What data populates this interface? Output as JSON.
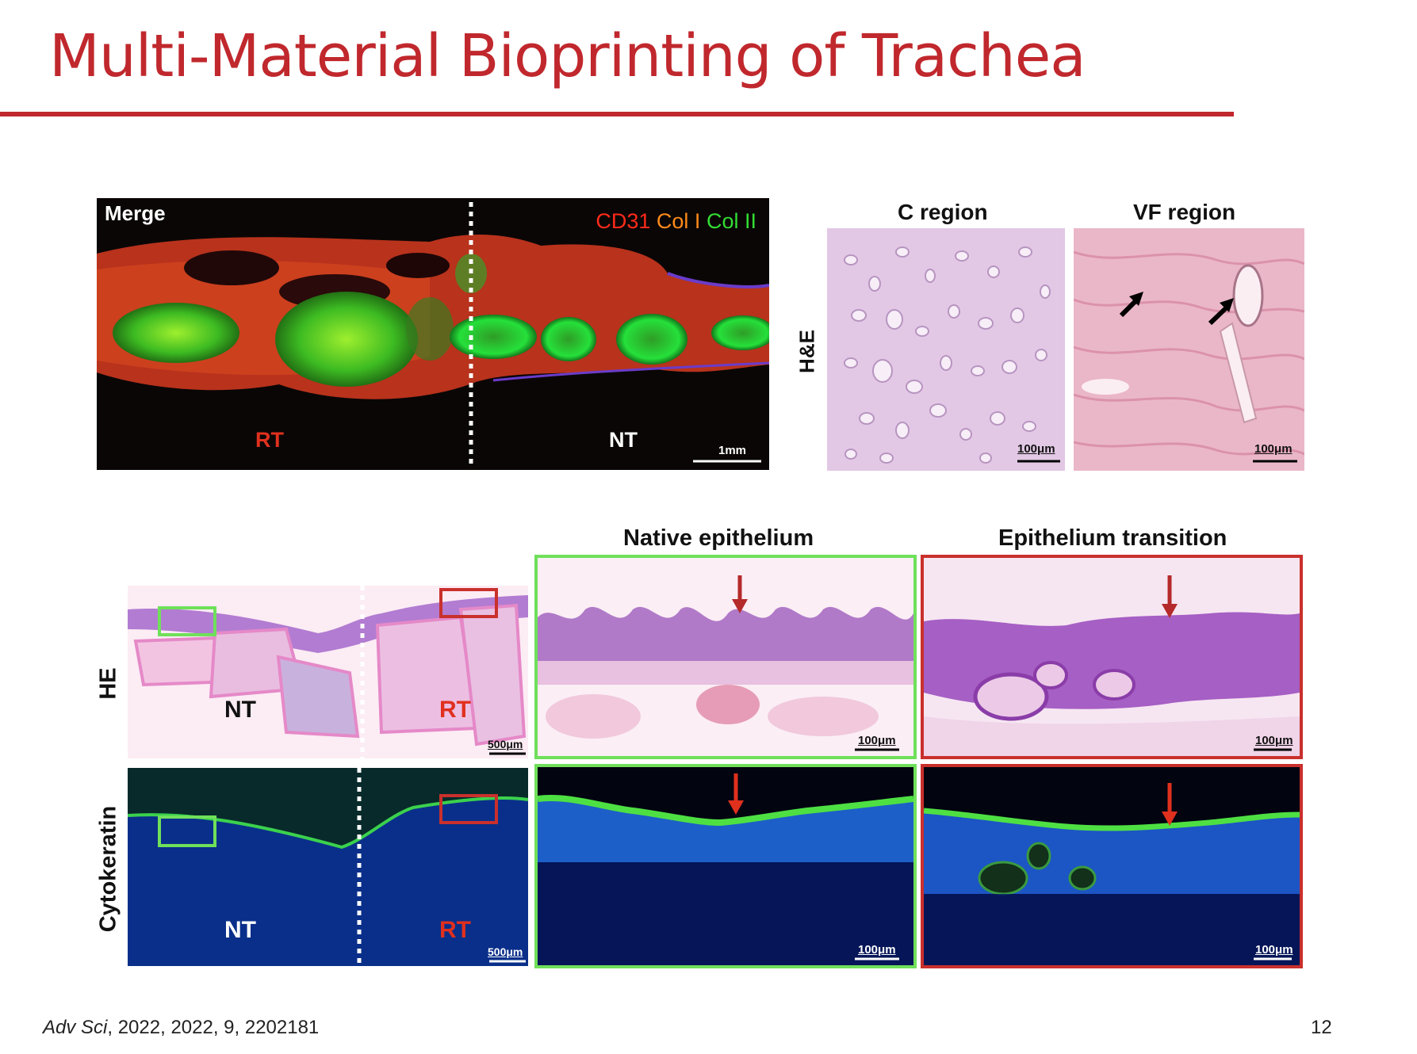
{
  "slide": {
    "title": "Multi-Material Bioprinting of Trachea",
    "citation_journal": "Adv Sci",
    "citation_rest": ", 2022, 2022, 9, 2202181",
    "page_number": "12"
  },
  "merge_panel": {
    "label": "Merge",
    "legend": [
      {
        "text": "CD31",
        "color": "#ff2a1a"
      },
      {
        "text": "Col I",
        "color": "#ff8a1a"
      },
      {
        "text": "Col II",
        "color": "#33dd33"
      }
    ],
    "left_region": "RT",
    "right_region": "NT",
    "scale": "1mm"
  },
  "he_panels": {
    "row_label": "H&E",
    "c_title": "C region",
    "vf_title": "VF region",
    "c_scale": "100μm",
    "vf_scale": "100μm"
  },
  "lower_figure": {
    "native_title": "Native epithelium",
    "transition_title": "Epithelium transition",
    "row1_label": "HE",
    "row2_label": "Cytokeratin",
    "overview_left": "NT",
    "overview_right": "RT",
    "overview_scale": "500μm",
    "zoom_scale": "100μm"
  },
  "colors": {
    "accent": "#c0282d",
    "green_box": "#6fe05a",
    "red_box": "#c9302c"
  }
}
